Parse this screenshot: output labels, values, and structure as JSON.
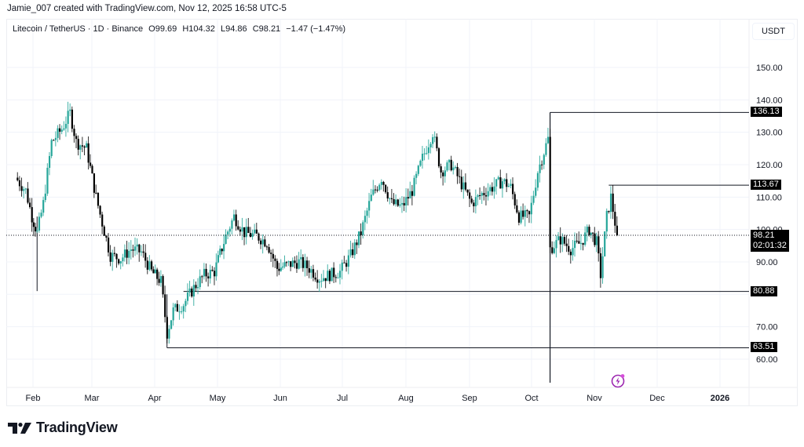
{
  "header": {
    "credit": "Jamie_007 created with TradingView.com, Nov 12, 2025 16:58 UTC-5",
    "symbol": "Litecoin / TetherUS · 1D · Binance",
    "open": "O99.69",
    "high": "H104.32",
    "low": "L94.86",
    "close": "C98.21",
    "change": "−1.47 (−1.47%)",
    "currency": "USDT"
  },
  "colors": {
    "up": "#26a69a",
    "down": "#000000",
    "grid": "#f0f3fa",
    "line": "#131722",
    "accent": "#9c27b0"
  },
  "price_axis": {
    "ticks": [
      "150.00",
      "140.00",
      "130.00",
      "120.00",
      "110.00",
      "100.00",
      "90.00",
      "70.00",
      "60.00"
    ],
    "badges": [
      {
        "label": "136.13"
      },
      {
        "label": "113.67"
      },
      {
        "label": "98.21",
        "sub": "02:01:32"
      },
      {
        "label": "80.88"
      },
      {
        "label": "63.51"
      }
    ]
  },
  "time_axis": {
    "labels": [
      "Feb",
      "Mar",
      "Apr",
      "May",
      "Jun",
      "Jul",
      "Aug",
      "Sep",
      "Oct",
      "Nov",
      "Dec",
      "2026"
    ]
  },
  "footer": {
    "brand": "TradingView"
  },
  "chart_data": {
    "type": "candlestick",
    "title": "Litecoin / TetherUS · 1D · Binance",
    "symbol": "LTCUSDT",
    "interval": "1D",
    "exchange": "Binance",
    "ylabel": "USDT",
    "ylim": [
      52,
      160
    ],
    "last": {
      "open": 99.69,
      "high": 104.32,
      "low": 94.86,
      "close": 98.21,
      "change": -1.47,
      "change_pct": -1.47
    },
    "x_labels": [
      "Feb",
      "Mar",
      "Apr",
      "May",
      "Jun",
      "Jul",
      "Aug",
      "Sep",
      "Oct",
      "Nov",
      "Dec",
      "2026"
    ],
    "horizontal_levels": [
      {
        "value": 136.13,
        "label": "136.13",
        "from": "Oct 10"
      },
      {
        "value": 113.67,
        "label": "113.67",
        "from": "Nov 8"
      },
      {
        "value": 80.88,
        "label": "80.88",
        "from": "Apr 15"
      },
      {
        "value": 63.51,
        "label": "63.51",
        "from": "Apr 7"
      }
    ],
    "current_price_line": 98.21,
    "countdown": "02:01:32",
    "approx_close_path": [
      {
        "date": "Jan 23",
        "close": 116
      },
      {
        "date": "Jan 28",
        "close": 112
      },
      {
        "date": "Jan 31",
        "close": 104
      },
      {
        "date": "Feb 3",
        "close": 99
      },
      {
        "date": "Feb 6",
        "close": 108
      },
      {
        "date": "Feb 10",
        "close": 127
      },
      {
        "date": "Feb 15",
        "close": 131
      },
      {
        "date": "Feb 19",
        "close": 136
      },
      {
        "date": "Feb 22",
        "close": 127
      },
      {
        "date": "Feb 27",
        "close": 125
      },
      {
        "date": "Mar 3",
        "close": 110
      },
      {
        "date": "Mar 6",
        "close": 102
      },
      {
        "date": "Mar 10",
        "close": 92
      },
      {
        "date": "Mar 15",
        "close": 91
      },
      {
        "date": "Mar 20",
        "close": 94
      },
      {
        "date": "Mar 25",
        "close": 93
      },
      {
        "date": "Mar 30",
        "close": 87
      },
      {
        "date": "Apr 4",
        "close": 84
      },
      {
        "date": "Apr 7",
        "close": 68
      },
      {
        "date": "Apr 10",
        "close": 75
      },
      {
        "date": "Apr 15",
        "close": 77
      },
      {
        "date": "Apr 20",
        "close": 82
      },
      {
        "date": "Apr 25",
        "close": 86
      },
      {
        "date": "Apr 30",
        "close": 87
      },
      {
        "date": "May 5",
        "close": 98
      },
      {
        "date": "May 9",
        "close": 104
      },
      {
        "date": "May 14",
        "close": 99
      },
      {
        "date": "May 20",
        "close": 98
      },
      {
        "date": "May 25",
        "close": 96
      },
      {
        "date": "May 30",
        "close": 88
      },
      {
        "date": "Jun 4",
        "close": 89
      },
      {
        "date": "Jun 10",
        "close": 90
      },
      {
        "date": "Jun 15",
        "close": 88
      },
      {
        "date": "Jun 20",
        "close": 85
      },
      {
        "date": "Jun 25",
        "close": 86
      },
      {
        "date": "Jun 30",
        "close": 87
      },
      {
        "date": "Jul 5",
        "close": 92
      },
      {
        "date": "Jul 10",
        "close": 99
      },
      {
        "date": "Jul 15",
        "close": 110
      },
      {
        "date": "Jul 20",
        "close": 116
      },
      {
        "date": "Jul 25",
        "close": 108
      },
      {
        "date": "Jul 30",
        "close": 107
      },
      {
        "date": "Aug 4",
        "close": 112
      },
      {
        "date": "Aug 9",
        "close": 122
      },
      {
        "date": "Aug 14",
        "close": 130
      },
      {
        "date": "Aug 18",
        "close": 118
      },
      {
        "date": "Aug 23",
        "close": 120
      },
      {
        "date": "Aug 28",
        "close": 114
      },
      {
        "date": "Sep 2",
        "close": 108
      },
      {
        "date": "Sep 7",
        "close": 111
      },
      {
        "date": "Sep 12",
        "close": 113
      },
      {
        "date": "Sep 17",
        "close": 115
      },
      {
        "date": "Sep 21",
        "close": 113
      },
      {
        "date": "Sep 25",
        "close": 104
      },
      {
        "date": "Sep 30",
        "close": 104
      },
      {
        "date": "Oct 4",
        "close": 118
      },
      {
        "date": "Oct 9",
        "close": 128
      },
      {
        "date": "Oct 10",
        "close": 94
      },
      {
        "date": "Oct 15",
        "close": 97
      },
      {
        "date": "Oct 20",
        "close": 94
      },
      {
        "date": "Oct 25",
        "close": 96
      },
      {
        "date": "Oct 29",
        "close": 100
      },
      {
        "date": "Nov 2",
        "close": 96
      },
      {
        "date": "Nov 4",
        "close": 86
      },
      {
        "date": "Nov 7",
        "close": 104
      },
      {
        "date": "Nov 9",
        "close": 110
      },
      {
        "date": "Nov 12",
        "close": 98.21
      }
    ]
  }
}
